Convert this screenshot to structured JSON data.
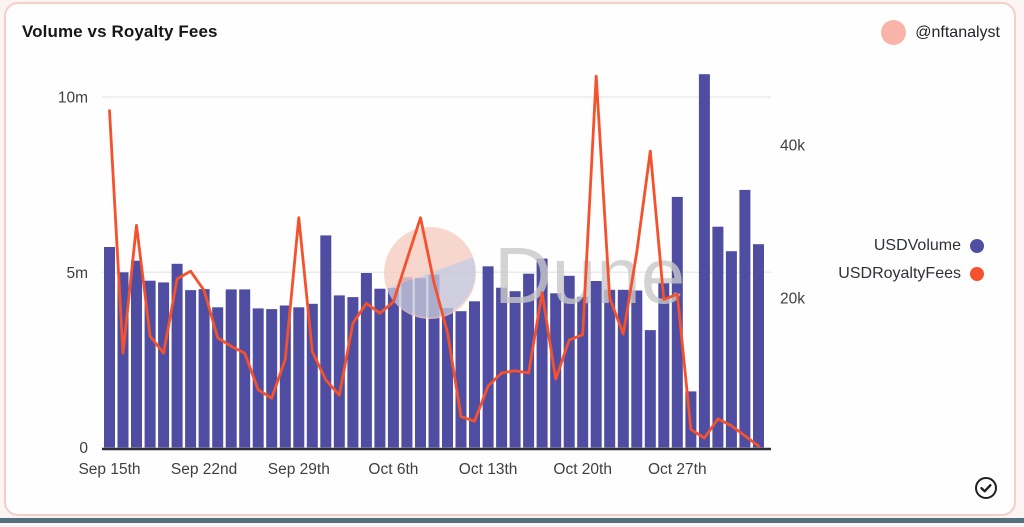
{
  "card": {
    "title": "Volume vs Royalty Fees",
    "byline": "@nftanalyst"
  },
  "legend": {
    "items": [
      {
        "label": "USDVolume",
        "color": "#504ea2"
      },
      {
        "label": "USDRoyaltyFees",
        "color": "#f4512c"
      }
    ]
  },
  "watermark": {
    "text": "Dune"
  },
  "badge": {
    "name": "verified-check"
  },
  "colors": {
    "bar": "#4f4da1",
    "line": "#f4512c",
    "grid": "#ebebeb",
    "axis_line": "#2d2d33",
    "axis_text": "#3f3f3f",
    "card_border": "#f3cfc8",
    "watermark_circle_top": "#f6cdc2",
    "watermark_circle_bottom": "#bfc3da",
    "watermark_text": "#c9c9c9",
    "avatar_pink": "#f9b4aa"
  },
  "chart_data": {
    "type": "bar",
    "title": "Volume vs Royalty Fees",
    "x_tick_labels": [
      "Sep 15th",
      "Sep 22nd",
      "Sep 29th",
      "Oct 6th",
      "Oct 13th",
      "Oct 20th",
      "Oct 27th"
    ],
    "x_tick_indices": [
      0,
      7,
      14,
      21,
      28,
      35,
      42
    ],
    "left_axis": {
      "ticks": [
        "0",
        "5m",
        "10m"
      ],
      "tick_values_m": [
        0,
        5,
        10
      ],
      "max_m": 11
    },
    "right_axis": {
      "ticks": [
        "20k",
        "40k"
      ],
      "tick_values_k": [
        20,
        40
      ],
      "max_k": 50
    },
    "grid": "horizontal-left-axis-only",
    "legend_position": "right",
    "series": [
      {
        "name": "USDVolume",
        "type": "bar",
        "axis": "left",
        "unit": "millions USD",
        "values_m": [
          5.72,
          5.0,
          5.33,
          4.76,
          4.71,
          5.24,
          4.49,
          4.52,
          4.0,
          4.51,
          4.51,
          3.97,
          3.95,
          4.05,
          4.0,
          4.1,
          6.05,
          4.34,
          4.29,
          4.98,
          4.53,
          4.55,
          4.86,
          4.83,
          4.93,
          3.98,
          3.89,
          4.17,
          5.17,
          4.56,
          4.46,
          4.96,
          5.39,
          4.4,
          4.9,
          4.3,
          4.75,
          4.5,
          4.5,
          4.48,
          3.35,
          4.7,
          7.15,
          1.6,
          10.65,
          6.3,
          5.6,
          7.35,
          5.8
        ]
      },
      {
        "name": "USDRoyaltyFees",
        "type": "line",
        "axis": "right",
        "unit": "thousands USD",
        "values_k": [
          44.5,
          12.8,
          29.5,
          15.0,
          12.8,
          22.5,
          23.5,
          21.0,
          14.8,
          13.7,
          12.8,
          8.0,
          6.9,
          12.0,
          30.5,
          13.0,
          9.3,
          7.3,
          16.7,
          19.3,
          18.0,
          19.5,
          25.0,
          30.5,
          22.0,
          15.5,
          4.5,
          3.9,
          8.5,
          10.2,
          10.5,
          10.2,
          20.7,
          9.4,
          14.5,
          15.2,
          49.0,
          20.0,
          15.3,
          26.0,
          39.2,
          19.8,
          20.5,
          2.8,
          1.7,
          4.2,
          3.3,
          2.0,
          0.65
        ]
      }
    ]
  }
}
